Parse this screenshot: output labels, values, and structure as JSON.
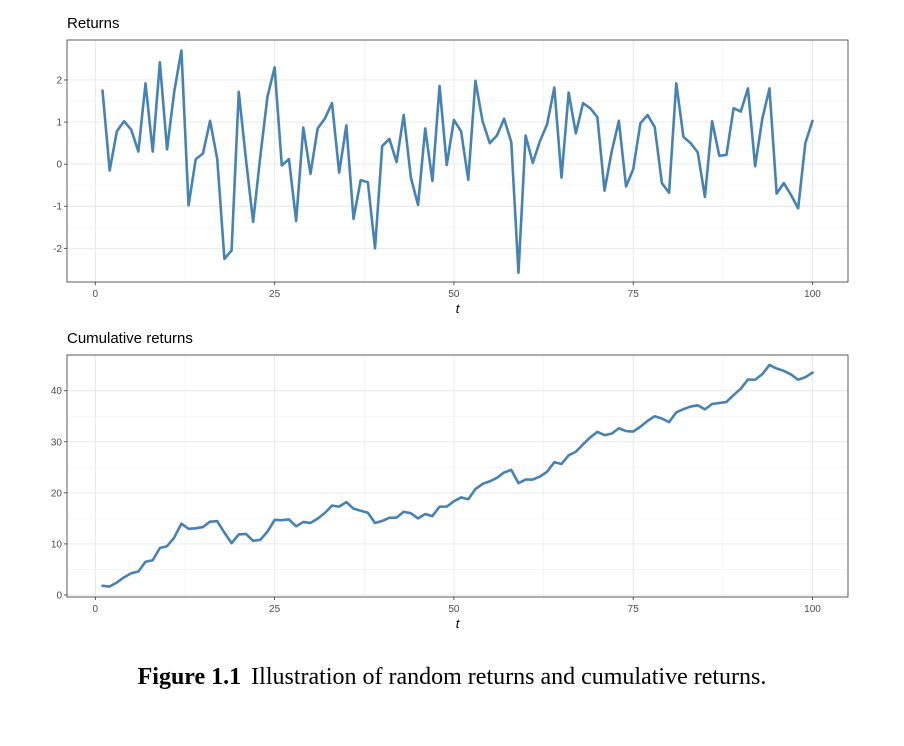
{
  "chart_data": [
    {
      "type": "line",
      "title": "Returns",
      "xlabel": "t",
      "ylabel": "",
      "xlim": [
        -3.95,
        104.95
      ],
      "ylim": [
        -2.8,
        2.95
      ],
      "xticks": [
        0,
        25,
        50,
        75,
        100
      ],
      "yticks": [
        -2,
        -1,
        0,
        1,
        2
      ],
      "grid": true,
      "color": "#4682b4",
      "series": [
        {
          "x": [
            1,
            2,
            3,
            4,
            5,
            6,
            7,
            8,
            9,
            10,
            11,
            12,
            13,
            14,
            15,
            16,
            17,
            18,
            19,
            20,
            21,
            22,
            23,
            24,
            25,
            26,
            27,
            28,
            29,
            30,
            31,
            32,
            33,
            34,
            35,
            36,
            37,
            38,
            39,
            40,
            41,
            42,
            43,
            44,
            45,
            46,
            47,
            48,
            49,
            50,
            51,
            52,
            53,
            54,
            55,
            56,
            57,
            58,
            59,
            60,
            61,
            62,
            63,
            64,
            65,
            66,
            67,
            68,
            69,
            70,
            71,
            72,
            73,
            74,
            75,
            76,
            77,
            78,
            79,
            80,
            81,
            82,
            83,
            84,
            85,
            86,
            87,
            88,
            89,
            90,
            91,
            92,
            93,
            94,
            95,
            96,
            97,
            98,
            99,
            100
          ],
          "values": [
            1.75,
            -0.15,
            0.78,
            1.02,
            0.82,
            0.3,
            1.92,
            0.3,
            2.42,
            0.35,
            1.72,
            2.7,
            -0.98,
            0.12,
            0.25,
            1.03,
            0.12,
            -2.25,
            -2.05,
            1.72,
            0.12,
            -1.37,
            0.18,
            1.6,
            2.3,
            -0.03,
            0.12,
            -1.35,
            0.87,
            -0.23,
            0.85,
            1.08,
            1.45,
            -0.2,
            0.92,
            -1.3,
            -0.38,
            -0.43,
            -2.0,
            0.43,
            0.6,
            0.05,
            1.17,
            -0.32,
            -0.97,
            0.85,
            -0.4,
            1.86,
            -0.02,
            1.05,
            0.78,
            -0.37,
            1.98,
            1.02,
            0.5,
            0.68,
            1.08,
            0.52,
            -2.58,
            0.68,
            0.03,
            0.55,
            0.95,
            1.82,
            -0.32,
            1.7,
            0.73,
            1.45,
            1.33,
            1.12,
            -0.63,
            0.3,
            1.03,
            -0.53,
            -0.12,
            0.97,
            1.17,
            0.88,
            -0.45,
            -0.68,
            1.92,
            0.65,
            0.5,
            0.28,
            -0.78,
            1.02,
            0.2,
            0.22,
            1.33,
            1.25,
            1.8,
            -0.05,
            1.08,
            1.8,
            -0.7,
            -0.45,
            -0.73,
            -1.05,
            0.5,
            1.03
          ]
        }
      ]
    },
    {
      "type": "line",
      "title": "Cumulative returns",
      "xlabel": "t",
      "ylabel": "",
      "xlim": [
        -3.95,
        104.95
      ],
      "ylim": [
        -0.4,
        47.0
      ],
      "xticks": [
        0,
        25,
        50,
        75,
        100
      ],
      "yticks": [
        0,
        10,
        20,
        30,
        40
      ],
      "grid": true,
      "color": "#4682b4",
      "series": [
        {
          "x": [
            1,
            2,
            3,
            4,
            5,
            6,
            7,
            8,
            9,
            10,
            11,
            12,
            13,
            14,
            15,
            16,
            17,
            18,
            19,
            20,
            21,
            22,
            23,
            24,
            25,
            26,
            27,
            28,
            29,
            30,
            31,
            32,
            33,
            34,
            35,
            36,
            37,
            38,
            39,
            40,
            41,
            42,
            43,
            44,
            45,
            46,
            47,
            48,
            49,
            50,
            51,
            52,
            53,
            54,
            55,
            56,
            57,
            58,
            59,
            60,
            61,
            62,
            63,
            64,
            65,
            66,
            67,
            68,
            69,
            70,
            71,
            72,
            73,
            74,
            75,
            76,
            77,
            78,
            79,
            80,
            81,
            82,
            83,
            84,
            85,
            86,
            87,
            88,
            89,
            90,
            91,
            92,
            93,
            94,
            95,
            96,
            97,
            98,
            99,
            100
          ],
          "values": [
            1.8,
            1.65,
            2.45,
            3.45,
            4.25,
            4.6,
            6.5,
            6.8,
            9.2,
            9.55,
            11.25,
            13.95,
            12.95,
            13.05,
            13.3,
            14.35,
            14.45,
            12.2,
            10.15,
            11.85,
            11.95,
            10.6,
            10.8,
            12.4,
            14.7,
            14.65,
            14.8,
            13.45,
            14.3,
            14.1,
            14.95,
            16.05,
            17.5,
            17.3,
            18.2,
            16.9,
            16.5,
            16.1,
            14.1,
            14.5,
            15.1,
            15.15,
            16.3,
            16.0,
            15.0,
            15.85,
            15.45,
            17.3,
            17.3,
            18.35,
            19.1,
            18.75,
            20.75,
            21.75,
            22.25,
            22.95,
            24.0,
            24.5,
            21.9,
            22.6,
            22.6,
            23.2,
            24.15,
            26.0,
            25.65,
            27.35,
            28.05,
            29.5,
            30.85,
            31.95,
            31.3,
            31.6,
            32.65,
            32.1,
            32.0,
            32.95,
            34.1,
            35.0,
            34.55,
            33.85,
            35.75,
            36.4,
            36.9,
            37.15,
            36.35,
            37.4,
            37.6,
            37.8,
            39.15,
            40.4,
            42.2,
            42.15,
            43.25,
            45.05,
            44.35,
            43.9,
            43.2,
            42.15,
            42.65,
            43.55
          ]
        }
      ]
    }
  ],
  "caption": {
    "label": "Figure 1.1",
    "text": "Illustration of random returns and cumulative returns."
  }
}
